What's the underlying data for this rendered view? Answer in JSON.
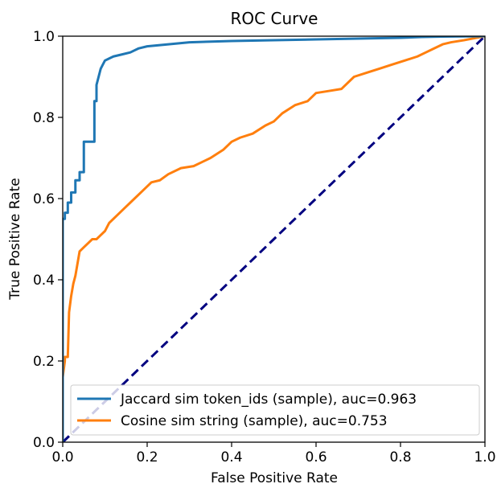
{
  "chart_data": {
    "type": "line",
    "title": "ROC Curve",
    "xlabel": "False Positive Rate",
    "ylabel": "True Positive Rate",
    "xlim": [
      0.0,
      1.0
    ],
    "ylim": [
      0.0,
      1.0
    ],
    "xticks": [
      "0.0",
      "0.2",
      "0.4",
      "0.6",
      "0.8",
      "1.0"
    ],
    "yticks": [
      "0.0",
      "0.2",
      "0.4",
      "0.6",
      "0.8",
      "1.0"
    ],
    "grid": false,
    "legend_position": "lower-right",
    "series": [
      {
        "name": "Jaccard sim token_ids (sample), auc=0.963",
        "color": "#1f77b4",
        "style": "solid",
        "x": [
          0.0,
          0.0,
          0.005,
          0.005,
          0.012,
          0.012,
          0.02,
          0.02,
          0.03,
          0.03,
          0.04,
          0.04,
          0.05,
          0.05,
          0.062,
          0.062,
          0.075,
          0.075,
          0.08,
          0.08,
          0.085,
          0.09,
          0.095,
          0.1,
          0.11,
          0.12,
          0.14,
          0.16,
          0.18,
          0.2,
          0.25,
          0.3,
          0.4,
          0.5,
          0.6,
          0.7,
          0.8,
          0.85,
          0.9,
          1.0
        ],
        "y": [
          0.0,
          0.55,
          0.55,
          0.565,
          0.565,
          0.59,
          0.59,
          0.615,
          0.615,
          0.645,
          0.645,
          0.665,
          0.665,
          0.74,
          0.74,
          0.74,
          0.74,
          0.84,
          0.84,
          0.88,
          0.9,
          0.92,
          0.93,
          0.94,
          0.945,
          0.95,
          0.955,
          0.96,
          0.97,
          0.975,
          0.98,
          0.985,
          0.988,
          0.99,
          0.992,
          0.994,
          0.996,
          0.998,
          0.999,
          1.0
        ],
        "points": [
          [
            0.0,
            0.0
          ],
          [
            0.0,
            0.55
          ]
        ]
      },
      {
        "name": "Cosine sim string (sample), auc=0.753",
        "color": "#ff7f0e",
        "style": "solid",
        "x": [
          0.0,
          0.0,
          0.005,
          0.005,
          0.012,
          0.015,
          0.02,
          0.025,
          0.03,
          0.04,
          0.05,
          0.06,
          0.07,
          0.08,
          0.09,
          0.1,
          0.11,
          0.12,
          0.13,
          0.15,
          0.17,
          0.19,
          0.21,
          0.23,
          0.25,
          0.28,
          0.31,
          0.33,
          0.35,
          0.38,
          0.4,
          0.42,
          0.45,
          0.48,
          0.5,
          0.52,
          0.55,
          0.58,
          0.6,
          0.63,
          0.66,
          0.69,
          0.72,
          0.75,
          0.78,
          0.81,
          0.84,
          0.86,
          0.88,
          0.9,
          0.92,
          0.95,
          1.0
        ],
        "y": [
          0.0,
          0.16,
          0.2,
          0.21,
          0.21,
          0.32,
          0.36,
          0.39,
          0.41,
          0.47,
          0.48,
          0.49,
          0.5,
          0.5,
          0.51,
          0.52,
          0.54,
          0.55,
          0.56,
          0.58,
          0.6,
          0.62,
          0.64,
          0.645,
          0.66,
          0.675,
          0.68,
          0.69,
          0.7,
          0.72,
          0.74,
          0.75,
          0.76,
          0.78,
          0.79,
          0.81,
          0.83,
          0.84,
          0.86,
          0.865,
          0.87,
          0.9,
          0.91,
          0.92,
          0.93,
          0.94,
          0.95,
          0.96,
          0.97,
          0.98,
          0.985,
          0.99,
          1.0
        ]
      },
      {
        "name": "",
        "color": "#000080",
        "style": "dashed",
        "x": [
          0.0,
          1.0
        ],
        "y": [
          0.0,
          1.0
        ]
      }
    ],
    "legend": [
      {
        "label": "Jaccard sim token_ids (sample), auc=0.963",
        "color": "#1f77b4"
      },
      {
        "label": "Cosine sim string (sample), auc=0.753",
        "color": "#ff7f0e"
      }
    ]
  }
}
